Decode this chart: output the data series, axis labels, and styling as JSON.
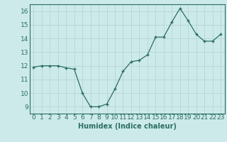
{
  "x": [
    0,
    1,
    2,
    3,
    4,
    5,
    6,
    7,
    8,
    9,
    10,
    11,
    12,
    13,
    14,
    15,
    16,
    17,
    18,
    19,
    20,
    21,
    22,
    23
  ],
  "y": [
    11.9,
    12.0,
    12.0,
    12.0,
    11.85,
    11.75,
    10.0,
    9.0,
    9.0,
    9.2,
    10.3,
    11.6,
    12.3,
    12.4,
    12.8,
    14.1,
    14.1,
    15.2,
    16.2,
    15.3,
    14.3,
    13.8,
    13.8,
    14.3
  ],
  "line_color": "#2a6e62",
  "marker": "+",
  "marker_size": 4,
  "bg_color": "#cdeaea",
  "grid_color": "#b8d8d8",
  "xlabel": "Humidex (Indice chaleur)",
  "ylabel_ticks": [
    9,
    10,
    11,
    12,
    13,
    14,
    15,
    16
  ],
  "xlim": [
    -0.5,
    23.5
  ],
  "ylim": [
    8.5,
    16.5
  ],
  "xlabel_fontsize": 7,
  "tick_fontsize": 6.5,
  "spine_color": "#2a6e62"
}
